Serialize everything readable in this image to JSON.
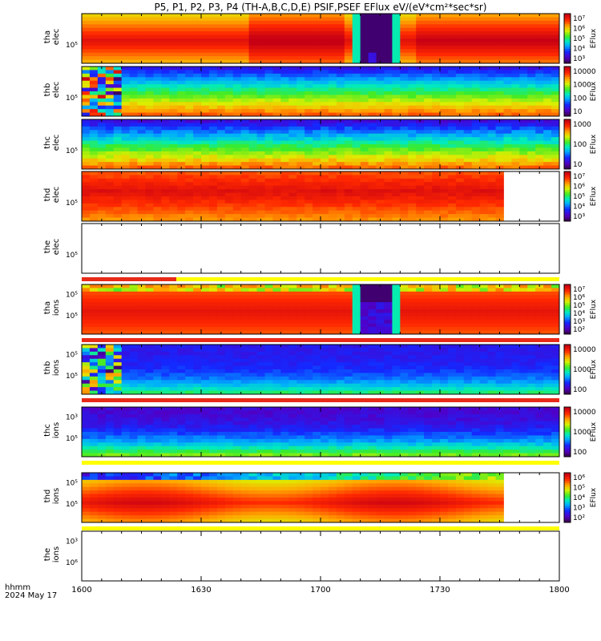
{
  "chart_data": {
    "type": "heatmap",
    "title": "P5, P1, P2, P3, P4 (TH-A,B,C,D,E) PSIF,PSEF EFlux eV/(eV*cm²*sec*sr)",
    "x_axis": {
      "range": [
        "1600",
        "1800"
      ],
      "ticks": [
        "1600",
        "1630",
        "1700",
        "1730",
        "1800"
      ],
      "label_line1": "hhmm",
      "label_line2": "2024 May 17"
    },
    "colorbar_label": "EFlux",
    "panels": [
      {
        "probe": "tha",
        "species": "elec",
        "ylabel": [
          "tha",
          "elec"
        ],
        "ytick": "10⁵",
        "empty": false,
        "colorbar_ticks": [
          "10⁷",
          "10⁶",
          "10⁵",
          "10⁴",
          "10³"
        ],
        "bar_below": false
      },
      {
        "probe": "thb",
        "species": "elec",
        "ylabel": [
          "thb",
          "elec"
        ],
        "ytick": "10⁵",
        "empty": false,
        "colorbar_ticks": [
          "10000",
          "1000",
          "100",
          "10"
        ],
        "bar_below": false
      },
      {
        "probe": "thc",
        "species": "elec",
        "ylabel": [
          "thc",
          "elec"
        ],
        "ytick": "10⁵",
        "empty": false,
        "colorbar_ticks": [
          "1000",
          "100",
          "10"
        ],
        "bar_below": false
      },
      {
        "probe": "thd",
        "species": "elec",
        "ylabel": [
          "thd",
          "elec"
        ],
        "ytick": "10⁵",
        "empty": false,
        "colorbar_ticks": [
          "10⁷",
          "10⁶",
          "10⁵",
          "10⁴",
          "10³"
        ],
        "bar_below": false
      },
      {
        "probe": "the",
        "species": "elec",
        "ylabel": [
          "the",
          "elec"
        ],
        "ytick": "10⁵",
        "empty": true,
        "colorbar_ticks": [],
        "bar_below": true
      },
      {
        "probe": "tha",
        "species": "ions",
        "ylabel": [
          "tha",
          "ions"
        ],
        "ytick": "10⁵",
        "ytick2": "10⁵",
        "empty": false,
        "colorbar_ticks": [
          "10⁷",
          "10⁶",
          "10⁵",
          "10⁴",
          "10³",
          "10²"
        ],
        "bar_below": true
      },
      {
        "probe": "thb",
        "species": "ions",
        "ylabel": [
          "thb",
          "ions"
        ],
        "ytick": "10⁵",
        "ytick2": "10⁵",
        "empty": false,
        "colorbar_ticks": [
          "10000",
          "1000",
          "100"
        ],
        "bar_below": true
      },
      {
        "probe": "thc",
        "species": "ions",
        "ylabel": [
          "thc",
          "ions"
        ],
        "ytick": "10⁵",
        "ytick2": "10³",
        "empty": false,
        "colorbar_ticks": [
          "10000",
          "1000",
          "100"
        ],
        "bar_below": true
      },
      {
        "probe": "thd",
        "species": "ions",
        "ylabel": [
          "thd",
          "ions"
        ],
        "ytick": "10⁵",
        "ytick2": "10⁵",
        "empty": false,
        "colorbar_ticks": [
          "10⁶",
          "10⁵",
          "10⁴",
          "10³",
          "10²"
        ],
        "bar_below": true
      },
      {
        "probe": "the",
        "species": "ions",
        "ylabel": [
          "the",
          "ions"
        ],
        "ytick": "10⁶",
        "ytick2": "10³",
        "empty": true,
        "colorbar_ticks": [],
        "bar_below": false
      }
    ]
  }
}
